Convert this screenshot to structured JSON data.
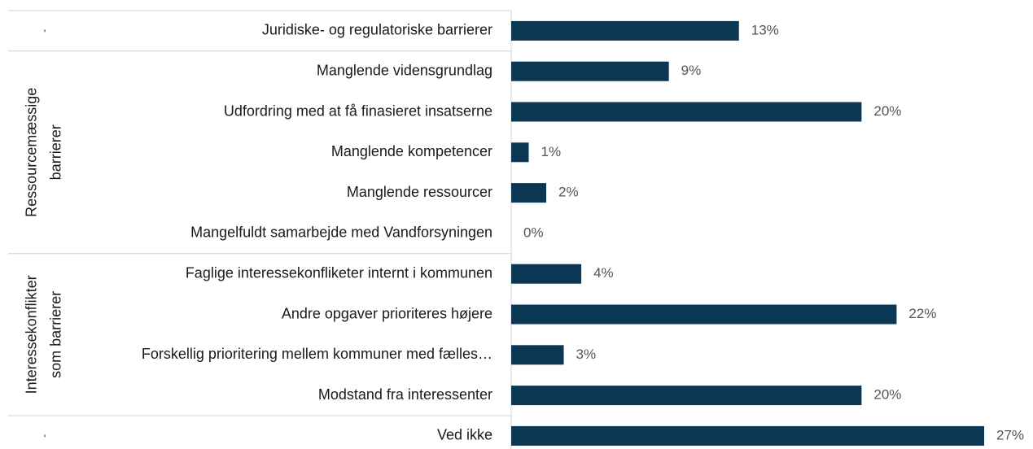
{
  "chart_data": {
    "type": "bar",
    "color": "#0b3654",
    "groups": [
      {
        "name": [
          "-"
        ],
        "categories": [
          "Juridiske- og regulatoriske barrierer"
        ],
        "values": [
          13
        ],
        "value_labels": [
          "13%"
        ]
      },
      {
        "name": [
          "Ressourcemæssige",
          "barrierer"
        ],
        "categories": [
          "Manglende vidensgrundlag",
          "Udfordring med at få finasieret insatserne",
          "Manglende kompetencer",
          "Manglende ressourcer",
          "Mangelfuldt samarbejde med Vandforsyningen"
        ],
        "values": [
          9,
          20,
          1,
          2,
          0
        ],
        "value_labels": [
          "9%",
          "20%",
          "1%",
          "2%",
          "0%"
        ]
      },
      {
        "name": [
          "Interessekonflikter",
          "som barrierer"
        ],
        "categories": [
          "Faglige interessekonfliketer internt i kommunen",
          "Andre opgaver prioriteres højere",
          "Forskellig prioritering mellem kommuner med fælles…",
          "Modstand fra interessenter"
        ],
        "values": [
          4,
          22,
          3,
          20
        ],
        "value_labels": [
          "4%",
          "22%",
          "3%",
          "20%"
        ]
      },
      {
        "name": [
          "-"
        ],
        "categories": [
          "Ved ikke"
        ],
        "values": [
          27
        ],
        "value_labels": [
          "27%"
        ]
      }
    ]
  }
}
